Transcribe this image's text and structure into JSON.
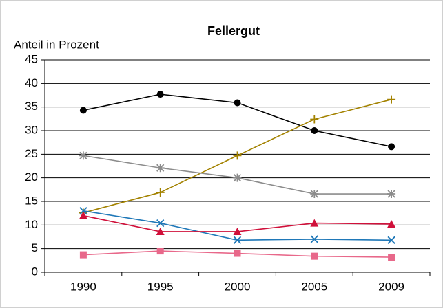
{
  "chart_data": {
    "type": "line",
    "title": "Fellergut",
    "y_label": "Anteil in Prozent",
    "categories": [
      "1990",
      "1995",
      "2000",
      "2005",
      "2009"
    ],
    "series": [
      {
        "color": "#000000",
        "marker": "circle",
        "values": [
          34.3,
          37.7,
          35.9,
          30.0,
          26.6
        ]
      },
      {
        "color": "#a38200",
        "marker": "plus",
        "values": [
          12.6,
          16.9,
          24.7,
          32.4,
          36.6
        ]
      },
      {
        "color": "#8c8c8c",
        "marker": "asterisk",
        "values": [
          24.7,
          22.1,
          20.0,
          16.6,
          16.6
        ]
      },
      {
        "color": "#1f78b8",
        "marker": "x",
        "values": [
          13.0,
          10.4,
          6.8,
          7.0,
          6.8
        ]
      },
      {
        "color": "#d0103a",
        "marker": "triangle",
        "values": [
          12.0,
          8.6,
          8.6,
          10.4,
          10.2
        ]
      },
      {
        "color": "#e8688a",
        "marker": "square",
        "values": [
          3.7,
          4.5,
          4.0,
          3.4,
          3.2
        ]
      }
    ],
    "ylim": [
      0,
      45
    ],
    "yticks": [
      0,
      5,
      10,
      15,
      20,
      25,
      30,
      35,
      40,
      45
    ],
    "grid": true
  }
}
